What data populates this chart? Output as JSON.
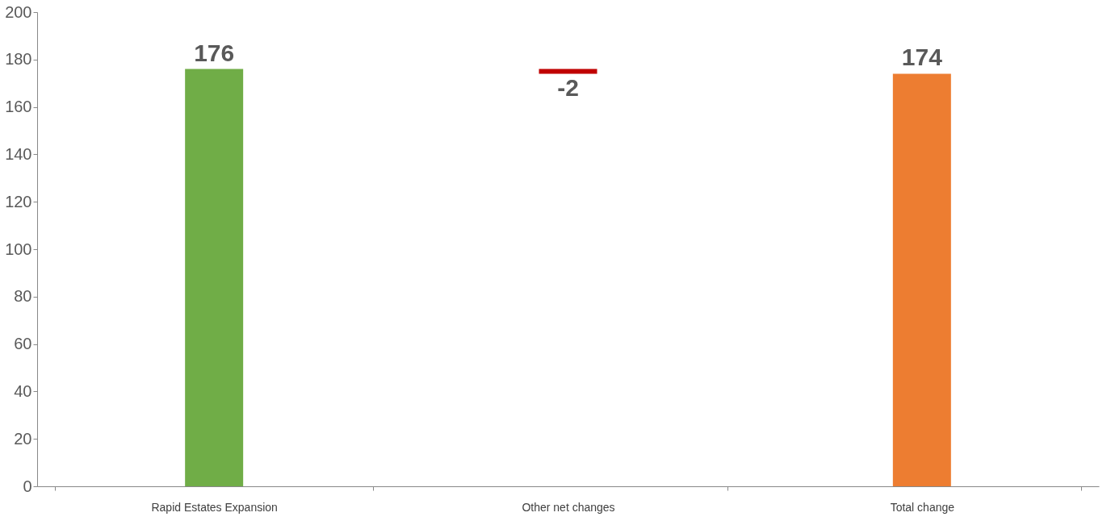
{
  "chart_data": {
    "type": "bar",
    "categories": [
      "Rapid Estates Expansion",
      "Other net changes",
      "Total change"
    ],
    "values": [
      176,
      -2,
      174
    ],
    "base": [
      0,
      176,
      0
    ],
    "colors": [
      "#70ad47",
      "#c00000",
      "#ed7d31"
    ],
    "data_labels": true,
    "ylim": [
      0,
      200
    ],
    "yticks": [
      0,
      20,
      40,
      60,
      80,
      100,
      120,
      140,
      160,
      180,
      200
    ],
    "grid": false
  }
}
